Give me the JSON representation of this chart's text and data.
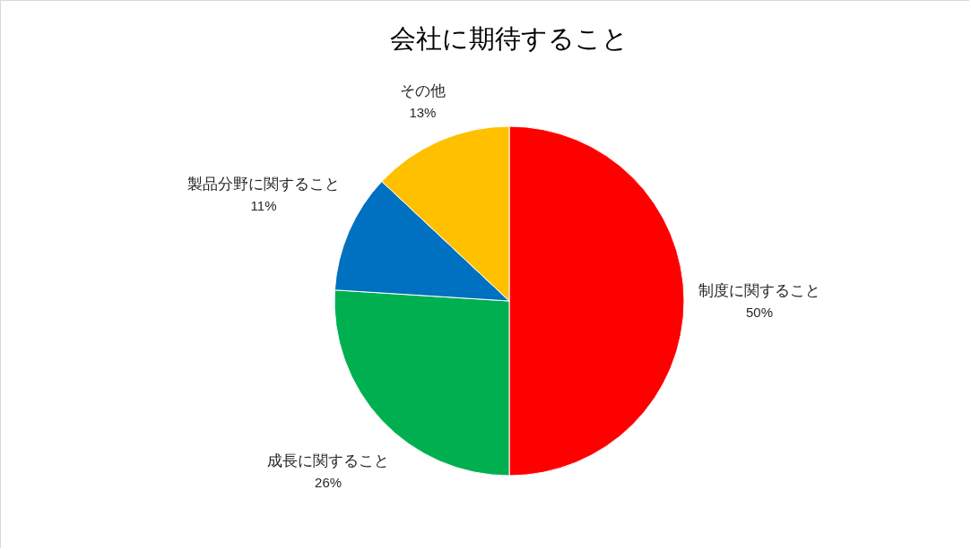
{
  "chart_data": {
    "type": "pie",
    "title": "会社に期待すること",
    "categories": [
      "制度に関すること",
      "成長に関すること",
      "製品分野に関すること",
      "その他"
    ],
    "values": [
      50,
      26,
      11,
      13
    ],
    "colors": [
      "#ff0000",
      "#00b050",
      "#0070c0",
      "#ffc000"
    ],
    "value_labels": [
      "50%",
      "26%",
      "11%",
      "13%"
    ]
  }
}
